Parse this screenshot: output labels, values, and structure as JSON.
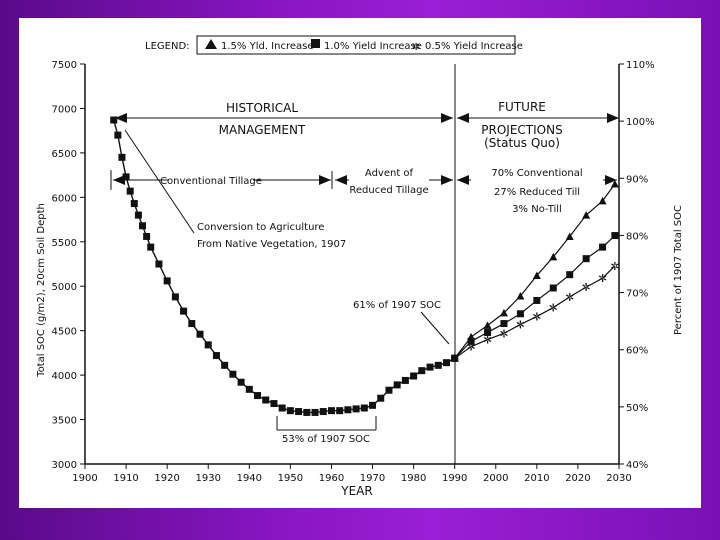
{
  "chart_data": {
    "type": "line",
    "xlabel": "YEAR",
    "ylabel": "Total SOC (g/m2), 20cm Soil Depth",
    "ylabel_right": "Percent of 1907 Total SOC",
    "xlim": [
      1900,
      2030
    ],
    "ylim": [
      3000,
      7500
    ],
    "ylim_right": [
      40,
      110
    ],
    "x_ticks": [
      "1900",
      "1910",
      "1920",
      "1930",
      "1940",
      "1950",
      "1960",
      "1970",
      "1980",
      "1990",
      "2000",
      "2010",
      "2020",
      "2030"
    ],
    "y_ticks": [
      "7500",
      "7000",
      "6500",
      "6000",
      "5500",
      "5000",
      "4500",
      "4000",
      "3500",
      "3000"
    ],
    "y_ticks_right": [
      "110%",
      "100%",
      "90%",
      "80%",
      "70%",
      "60%",
      "50%",
      "40%"
    ],
    "legend": {
      "title": "LEGEND:",
      "entries": [
        "1.5% Yld. Increase",
        "1.0% Yield Increase",
        "0.5% Yield Increase"
      ],
      "placement": "top"
    },
    "historical": {
      "x": [
        1907,
        1908,
        1909,
        1910,
        1911,
        1912,
        1913,
        1914,
        1915,
        1916,
        1918,
        1920,
        1922,
        1924,
        1926,
        1928,
        1930,
        1932,
        1934,
        1936,
        1938,
        1940,
        1942,
        1944,
        1946,
        1948,
        1950,
        1952,
        1954,
        1956,
        1958,
        1960,
        1962,
        1964,
        1966,
        1968,
        1970,
        1972,
        1974,
        1976,
        1978,
        1980,
        1982,
        1984,
        1986,
        1988,
        1990
      ],
      "y": [
        6870,
        6700,
        6450,
        6230,
        6070,
        5930,
        5800,
        5680,
        5560,
        5440,
        5250,
        5060,
        4880,
        4720,
        4580,
        4460,
        4340,
        4220,
        4110,
        4010,
        3920,
        3840,
        3770,
        3720,
        3680,
        3630,
        3600,
        3590,
        3580,
        3580,
        3590,
        3600,
        3600,
        3610,
        3620,
        3630,
        3660,
        3740,
        3830,
        3890,
        3940,
        3990,
        4050,
        4090,
        4110,
        4140,
        4190
      ]
    },
    "series": [
      {
        "name": "1.5% Yld. Increase",
        "marker": "triangle",
        "x": [
          1990,
          1994,
          1998,
          2002,
          2006,
          2010,
          2014,
          2018,
          2022,
          2026,
          2029
        ],
        "y": [
          4190,
          4430,
          4560,
          4700,
          4890,
          5120,
          5330,
          5560,
          5800,
          5960,
          6150
        ]
      },
      {
        "name": "1.0% Yield Increase",
        "marker": "square",
        "x": [
          1990,
          1994,
          1998,
          2002,
          2006,
          2010,
          2014,
          2018,
          2022,
          2026,
          2029
        ],
        "y": [
          4190,
          4380,
          4480,
          4580,
          4690,
          4840,
          4980,
          5130,
          5310,
          5440,
          5570
        ]
      },
      {
        "name": "0.5% Yield Increase",
        "marker": "star",
        "x": [
          1990,
          1994,
          1998,
          2002,
          2006,
          2010,
          2014,
          2018,
          2022,
          2026,
          2029
        ],
        "y": [
          4190,
          4320,
          4400,
          4470,
          4570,
          4660,
          4760,
          4880,
          4990,
          5090,
          5230
        ]
      }
    ],
    "annotations": {
      "historical": [
        "HISTORICAL",
        "MANAGEMENT"
      ],
      "future": [
        "FUTURE",
        "PROJECTIONS",
        "(Status Quo)"
      ],
      "conv_tillage": "Conventional Tillage",
      "advent": [
        "Advent of",
        "Reduced Tillage"
      ],
      "tillage_mix": [
        "70% Conventional",
        "27% Reduced Till",
        "3% No-Till"
      ],
      "conversion": [
        "Conversion to Agriculture",
        "From Native Vegetation, 1907"
      ],
      "pct53": "53% of 1907 SOC",
      "pct61": "61% of 1907 SOC"
    }
  }
}
